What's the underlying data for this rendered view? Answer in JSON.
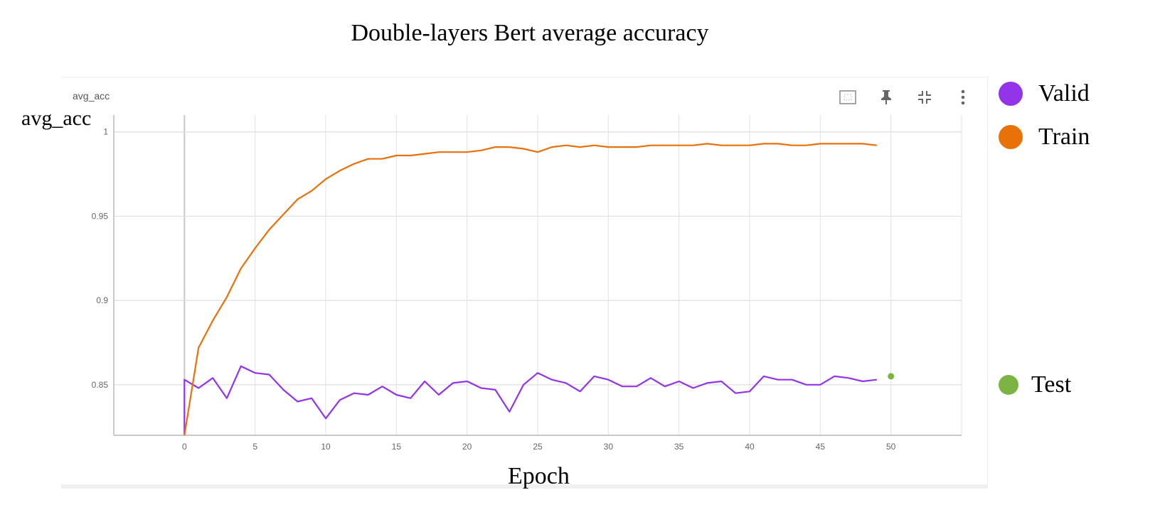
{
  "title": "Double-layers Bert average accuracy",
  "panel": {
    "label": "avg_acc"
  },
  "toolbar": {
    "icons": [
      "fit-domain-icon",
      "pin-icon",
      "collapse-icon",
      "more-vert-icon"
    ]
  },
  "chart_data": {
    "type": "line",
    "title": "Double-layers Bert average accuracy",
    "xlabel": "Epoch",
    "ylabel": "avg_acc",
    "xlim": [
      -5,
      55
    ],
    "ylim": [
      0.82,
      1.01
    ],
    "xticks": [
      0,
      5,
      10,
      15,
      20,
      25,
      30,
      35,
      40,
      45,
      50
    ],
    "yticks": [
      0.85,
      0.9,
      0.95,
      1
    ],
    "ytick_labels": [
      "0.85",
      "0.9",
      "0.95",
      "1"
    ],
    "grid": true,
    "legend_position": "right",
    "series": [
      {
        "name": "Valid",
        "color": "#9333ea",
        "x": [
          0,
          0,
          1,
          2,
          3,
          4,
          5,
          6,
          7,
          8,
          9,
          10,
          11,
          12,
          13,
          14,
          15,
          16,
          17,
          18,
          19,
          20,
          21,
          22,
          23,
          24,
          25,
          26,
          27,
          28,
          29,
          30,
          31,
          32,
          33,
          34,
          35,
          36,
          37,
          38,
          39,
          40,
          41,
          42,
          43,
          44,
          45,
          46,
          47,
          48,
          49
        ],
        "values": [
          0.82,
          0.853,
          0.848,
          0.854,
          0.842,
          0.861,
          0.857,
          0.856,
          0.847,
          0.84,
          0.842,
          0.83,
          0.841,
          0.845,
          0.844,
          0.849,
          0.844,
          0.842,
          0.852,
          0.844,
          0.851,
          0.852,
          0.848,
          0.847,
          0.834,
          0.85,
          0.857,
          0.853,
          0.851,
          0.846,
          0.855,
          0.853,
          0.849,
          0.849,
          0.854,
          0.849,
          0.852,
          0.848,
          0.851,
          0.852,
          0.845,
          0.846,
          0.855,
          0.853,
          0.853,
          0.85,
          0.85,
          0.855,
          0.854,
          0.852,
          0.853
        ]
      },
      {
        "name": "Train",
        "color": "#e8710a",
        "x": [
          0,
          1,
          2,
          3,
          4,
          5,
          6,
          7,
          8,
          9,
          10,
          11,
          12,
          13,
          14,
          15,
          16,
          17,
          18,
          19,
          20,
          21,
          22,
          23,
          24,
          25,
          26,
          27,
          28,
          29,
          30,
          31,
          32,
          33,
          34,
          35,
          36,
          37,
          38,
          39,
          40,
          41,
          42,
          43,
          44,
          45,
          46,
          47,
          48,
          49
        ],
        "values": [
          0.82,
          0.872,
          0.888,
          0.902,
          0.919,
          0.931,
          0.942,
          0.951,
          0.96,
          0.965,
          0.972,
          0.977,
          0.981,
          0.984,
          0.984,
          0.986,
          0.986,
          0.987,
          0.988,
          0.988,
          0.988,
          0.989,
          0.991,
          0.991,
          0.99,
          0.988,
          0.991,
          0.992,
          0.991,
          0.992,
          0.991,
          0.991,
          0.991,
          0.992,
          0.992,
          0.992,
          0.992,
          0.993,
          0.992,
          0.992,
          0.992,
          0.993,
          0.993,
          0.992,
          0.992,
          0.993,
          0.993,
          0.993,
          0.993,
          0.992
        ]
      },
      {
        "name": "Test",
        "color": "#7cb342",
        "x": [
          50
        ],
        "values": [
          0.855
        ]
      }
    ]
  }
}
